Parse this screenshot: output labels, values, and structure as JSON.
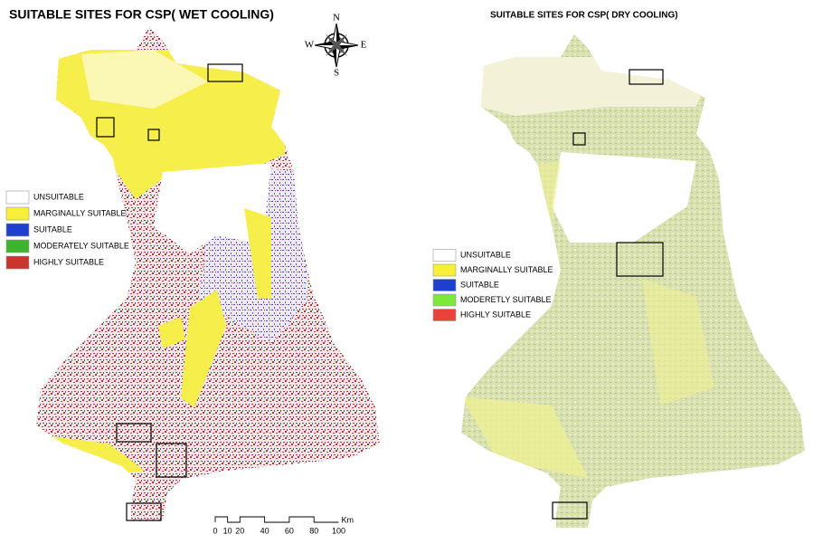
{
  "left_map": {
    "title": "SUITABLE SITES FOR CSP( WET COOLING)",
    "legend": [
      {
        "label": "UNSUITABLE",
        "color": "#ffffff"
      },
      {
        "label": "MARGINALLY SUITABLE",
        "color": "#f7ef3a"
      },
      {
        "label": "SUITABLE",
        "color": "#1f3fd0"
      },
      {
        "label": "MODERATELY SUITABLE",
        "color": "#3cb52c"
      },
      {
        "label": "HIGHLY SUITABLE",
        "color": "#c8352c"
      }
    ],
    "compass": {
      "north": "N",
      "south": "S",
      "east": "E",
      "west": "W"
    },
    "scale_bar": {
      "labels": [
        0,
        10,
        20,
        40,
        60,
        80,
        100
      ],
      "unit": "Km"
    }
  },
  "right_map": {
    "title": "SUITABLE SITES FOR CSP( DRY COOLING)",
    "legend": [
      {
        "label": "UNSUITABLE",
        "color": "#ffffff"
      },
      {
        "label": "MARGINALLY SUITABLE",
        "color": "#f7ef3a"
      },
      {
        "label": "SUITABLE",
        "color": "#1f3fd0"
      },
      {
        "label": "MODERETLY SUITABLE",
        "color": "#7ee83a"
      },
      {
        "label": "HIGHLY SUITABLE",
        "color": "#e8423a"
      }
    ]
  }
}
